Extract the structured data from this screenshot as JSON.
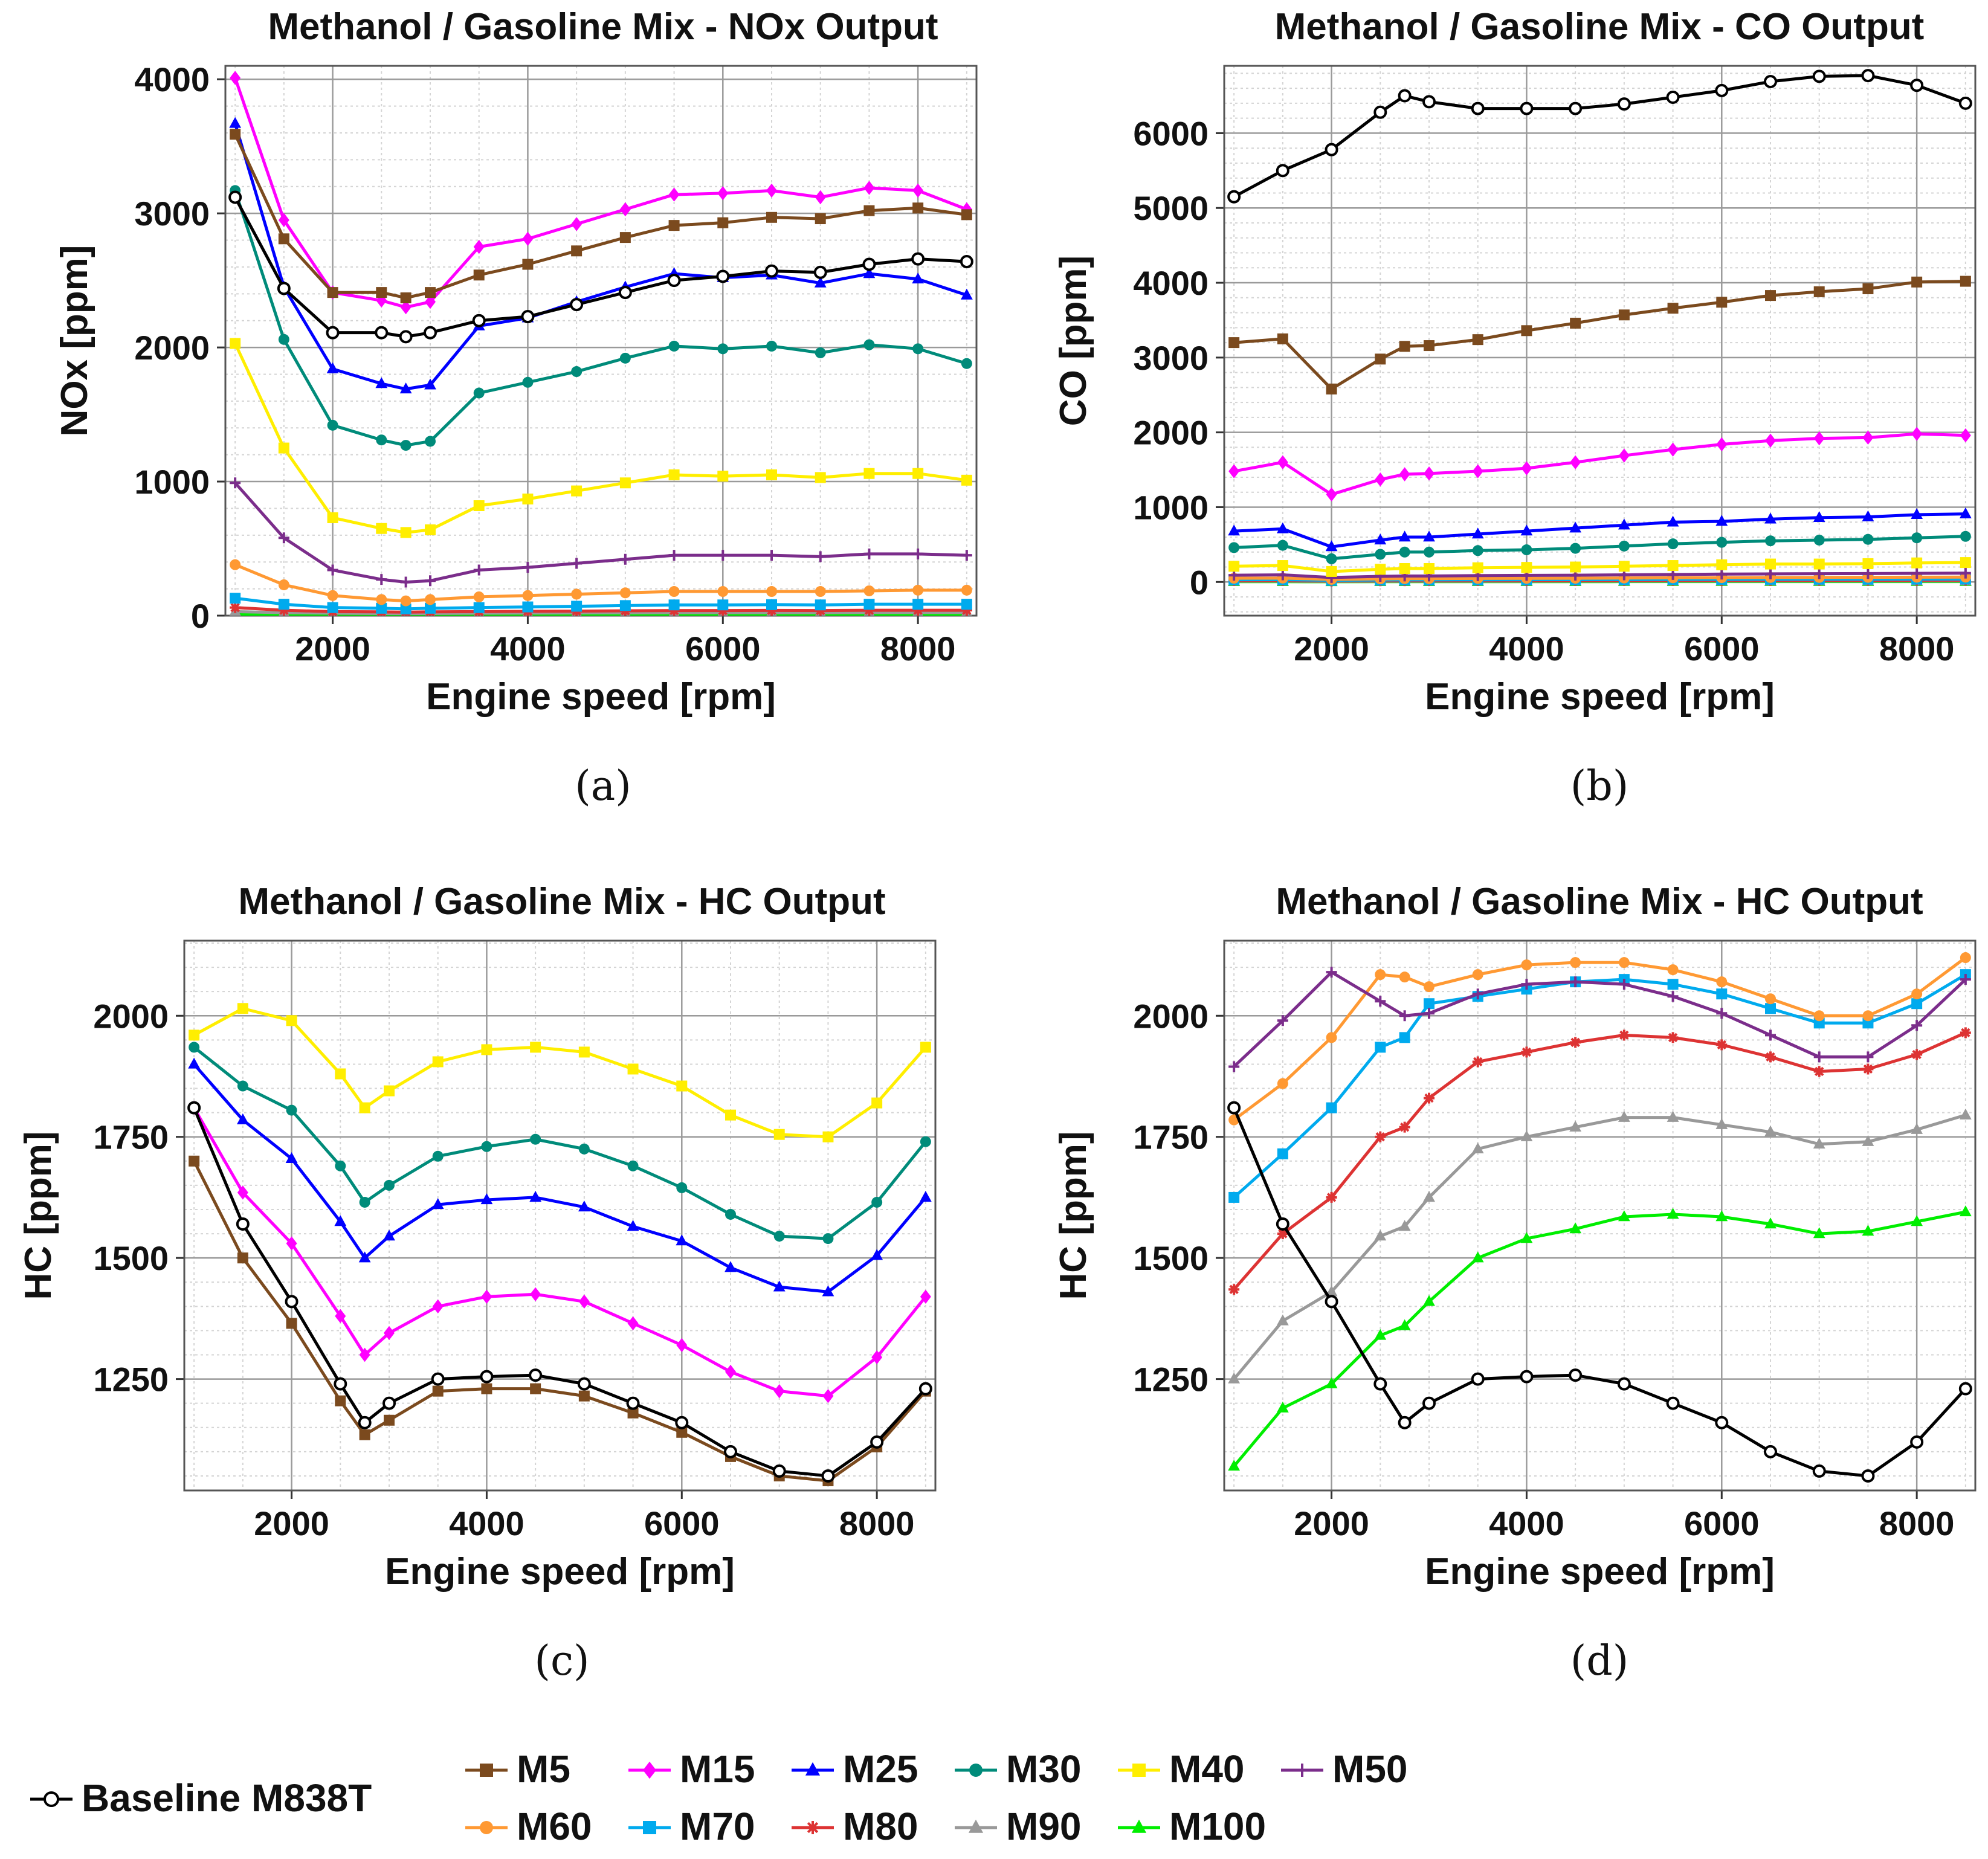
{
  "chart_data": [
    {
      "panel": "(a)",
      "type": "line",
      "title": "Methanol / Gasoline Mix - NOx Output",
      "xlabel": "Engine speed [rpm]",
      "ylabel": "NOx [ppm]",
      "xlim": [
        900,
        8600
      ],
      "ylim": [
        0,
        4100
      ],
      "xticks": [
        2000,
        4000,
        6000,
        8000
      ],
      "yticks": [
        0,
        1000,
        2000,
        3000,
        4000
      ],
      "grid": true,
      "x": [
        1000,
        1500,
        2000,
        2500,
        2750,
        3000,
        3500,
        4000,
        4500,
        5000,
        5500,
        6000,
        6500,
        7000,
        7500,
        8000,
        8500
      ],
      "series": [
        {
          "name": "Baseline M838T",
          "values": [
            3120,
            2440,
            2110,
            2110,
            2080,
            2110,
            2200,
            2230,
            2320,
            2410,
            2500,
            2530,
            2570,
            2560,
            2620,
            2660,
            2640
          ]
        },
        {
          "name": "M5",
          "values": [
            3590,
            2810,
            2410,
            2410,
            2370,
            2410,
            2540,
            2620,
            2720,
            2820,
            2910,
            2930,
            2970,
            2960,
            3020,
            3040,
            2990
          ]
        },
        {
          "name": "M15",
          "values": [
            4010,
            2950,
            2410,
            2350,
            2300,
            2340,
            2750,
            2810,
            2920,
            3030,
            3140,
            3150,
            3170,
            3120,
            3190,
            3170,
            3030
          ]
        },
        {
          "name": "M25",
          "values": [
            3670,
            2450,
            1840,
            1730,
            1690,
            1720,
            2160,
            2220,
            2340,
            2450,
            2550,
            2520,
            2540,
            2480,
            2550,
            2510,
            2390
          ]
        },
        {
          "name": "M30",
          "values": [
            3170,
            2060,
            1420,
            1310,
            1270,
            1300,
            1660,
            1740,
            1820,
            1920,
            2010,
            1990,
            2010,
            1960,
            2020,
            1990,
            1880
          ]
        },
        {
          "name": "M40",
          "values": [
            2030,
            1250,
            730,
            650,
            620,
            640,
            820,
            870,
            930,
            990,
            1050,
            1040,
            1050,
            1030,
            1060,
            1060,
            1010
          ]
        },
        {
          "name": "M50",
          "values": [
            990,
            580,
            340,
            270,
            250,
            260,
            340,
            360,
            390,
            420,
            450,
            450,
            450,
            440,
            460,
            460,
            450
          ]
        },
        {
          "name": "M60",
          "values": [
            380,
            230,
            150,
            120,
            110,
            120,
            140,
            150,
            160,
            170,
            180,
            180,
            180,
            180,
            185,
            190,
            190
          ]
        },
        {
          "name": "M70",
          "values": [
            130,
            85,
            60,
            55,
            50,
            55,
            60,
            65,
            70,
            75,
            80,
            80,
            82,
            80,
            85,
            85,
            85
          ]
        },
        {
          "name": "M80",
          "values": [
            60,
            40,
            30,
            28,
            26,
            28,
            30,
            32,
            34,
            36,
            38,
            38,
            39,
            38,
            40,
            40,
            40
          ]
        },
        {
          "name": "M90",
          "values": [
            30,
            22,
            18,
            16,
            15,
            16,
            18,
            19,
            20,
            21,
            22,
            22,
            22,
            22,
            23,
            23,
            23
          ]
        },
        {
          "name": "M100",
          "values": [
            10,
            8,
            7,
            6,
            6,
            6,
            7,
            7,
            7,
            8,
            8,
            8,
            8,
            8,
            8,
            8,
            8
          ]
        }
      ]
    },
    {
      "panel": "(b)",
      "type": "line",
      "title": "Methanol / Gasoline Mix - CO Output",
      "xlabel": "Engine speed [rpm]",
      "ylabel": "CO [ppm]",
      "xlim": [
        900,
        8600
      ],
      "ylim": [
        -450,
        6900
      ],
      "xticks": [
        2000,
        4000,
        6000,
        8000
      ],
      "yticks": [
        0,
        1000,
        2000,
        3000,
        4000,
        5000,
        6000
      ],
      "grid": true,
      "x": [
        1000,
        1500,
        2000,
        2500,
        2750,
        3000,
        3500,
        4000,
        4500,
        5000,
        5500,
        6000,
        6500,
        7000,
        7500,
        8000,
        8500
      ],
      "series": [
        {
          "name": "Baseline M838T",
          "values": [
            5150,
            5500,
            5780,
            6280,
            6500,
            6420,
            6330,
            6330,
            6330,
            6390,
            6480,
            6570,
            6690,
            6760,
            6770,
            6640,
            6400
          ]
        },
        {
          "name": "M5",
          "values": [
            3200,
            3250,
            2580,
            2980,
            3150,
            3160,
            3240,
            3360,
            3460,
            3570,
            3660,
            3740,
            3830,
            3880,
            3920,
            4010,
            4020
          ]
        },
        {
          "name": "M15",
          "values": [
            1480,
            1600,
            1170,
            1370,
            1440,
            1450,
            1480,
            1520,
            1600,
            1690,
            1770,
            1840,
            1890,
            1920,
            1930,
            1980,
            1960
          ]
        },
        {
          "name": "M25",
          "values": [
            680,
            710,
            470,
            560,
            600,
            600,
            640,
            680,
            720,
            760,
            800,
            810,
            840,
            860,
            870,
            900,
            910
          ]
        },
        {
          "name": "M30",
          "values": [
            460,
            490,
            310,
            370,
            400,
            400,
            420,
            430,
            450,
            480,
            510,
            530,
            550,
            560,
            570,
            590,
            610
          ]
        },
        {
          "name": "M40",
          "values": [
            210,
            220,
            140,
            170,
            180,
            180,
            190,
            195,
            200,
            210,
            220,
            230,
            240,
            240,
            245,
            255,
            260
          ]
        },
        {
          "name": "M50",
          "values": [
            90,
            95,
            60,
            75,
            80,
            80,
            85,
            88,
            90,
            95,
            100,
            105,
            108,
            110,
            112,
            115,
            118
          ]
        },
        {
          "name": "M60",
          "values": [
            50,
            52,
            35,
            42,
            45,
            45,
            48,
            49,
            50,
            53,
            56,
            58,
            60,
            61,
            62,
            64,
            65
          ]
        },
        {
          "name": "M70",
          "values": [
            30,
            31,
            22,
            26,
            28,
            28,
            29,
            30,
            31,
            32,
            34,
            35,
            36,
            37,
            37,
            38,
            39
          ]
        },
        {
          "name": "M80",
          "values": [
            18,
            19,
            13,
            16,
            17,
            17,
            18,
            18,
            19,
            20,
            21,
            21,
            22,
            22,
            23,
            23,
            24
          ]
        },
        {
          "name": "M90",
          "values": [
            10,
            11,
            8,
            9,
            10,
            10,
            10,
            10,
            11,
            11,
            12,
            12,
            12,
            13,
            13,
            13,
            13
          ]
        },
        {
          "name": "M100",
          "values": [
            4,
            4,
            3,
            4,
            4,
            4,
            4,
            4,
            4,
            5,
            5,
            5,
            5,
            5,
            5,
            5,
            5
          ]
        }
      ]
    },
    {
      "panel": "(c)",
      "type": "line",
      "title": "Methanol / Gasoline Mix - HC Output",
      "xlabel": "Engine speed [rpm]",
      "ylabel": "HC [ppm]",
      "xlim": [
        900,
        8600
      ],
      "ylim": [
        1020,
        2155
      ],
      "xticks": [
        2000,
        4000,
        6000,
        8000
      ],
      "yticks": [
        1250,
        1500,
        1750,
        2000
      ],
      "grid": true,
      "x": [
        1000,
        1500,
        2000,
        2500,
        2750,
        3000,
        3500,
        4000,
        4500,
        5000,
        5500,
        6000,
        6500,
        7000,
        7500,
        8000,
        8500
      ],
      "series": [
        {
          "name": "Baseline M838T",
          "values": [
            1810,
            1570,
            1410,
            1240,
            1160,
            1200,
            1250,
            1255,
            1258,
            1240,
            1200,
            1160,
            1100,
            1060,
            1050,
            1120,
            1230
          ]
        },
        {
          "name": "M5",
          "values": [
            1700,
            1500,
            1365,
            1205,
            1135,
            1165,
            1225,
            1230,
            1230,
            1215,
            1180,
            1140,
            1090,
            1050,
            1040,
            1110,
            1225
          ]
        },
        {
          "name": "M15",
          "values": [
            1810,
            1635,
            1530,
            1380,
            1300,
            1345,
            1400,
            1420,
            1425,
            1410,
            1365,
            1320,
            1265,
            1225,
            1215,
            1295,
            1420
          ]
        },
        {
          "name": "M25",
          "values": [
            1900,
            1785,
            1705,
            1575,
            1500,
            1545,
            1610,
            1620,
            1625,
            1605,
            1565,
            1535,
            1480,
            1440,
            1430,
            1505,
            1625
          ]
        },
        {
          "name": "M30",
          "values": [
            1935,
            1855,
            1805,
            1690,
            1615,
            1650,
            1710,
            1730,
            1745,
            1725,
            1690,
            1645,
            1590,
            1545,
            1540,
            1615,
            1740
          ]
        },
        {
          "name": "M40",
          "values": [
            1960,
            2015,
            1990,
            1880,
            1810,
            1845,
            1905,
            1930,
            1935,
            1925,
            1890,
            1855,
            1795,
            1755,
            1750,
            1820,
            1935
          ]
        }
      ]
    },
    {
      "panel": "(d)",
      "type": "line",
      "title": "Methanol / Gasoline Mix - HC Output",
      "xlabel": "Engine speed [rpm]",
      "ylabel": "HC [ppm]",
      "xlim": [
        900,
        8600
      ],
      "ylim": [
        1020,
        2155
      ],
      "xticks": [
        2000,
        4000,
        6000,
        8000
      ],
      "yticks": [
        1250,
        1500,
        1750,
        2000
      ],
      "grid": true,
      "x": [
        1000,
        1500,
        2000,
        2500,
        2750,
        3000,
        3500,
        4000,
        4500,
        5000,
        5500,
        6000,
        6500,
        7000,
        7500,
        8000,
        8500
      ],
      "series": [
        {
          "name": "Baseline M838T",
          "values": [
            1810,
            1570,
            1410,
            1240,
            1160,
            1200,
            1250,
            1255,
            1258,
            1240,
            1200,
            1160,
            1100,
            1060,
            1050,
            1120,
            1230
          ]
        },
        {
          "name": "M50",
          "values": [
            1895,
            1990,
            2090,
            2030,
            2000,
            2005,
            2045,
            2065,
            2070,
            2065,
            2040,
            2005,
            1960,
            1915,
            1915,
            1980,
            2075
          ]
        },
        {
          "name": "M60",
          "values": [
            1785,
            1860,
            1955,
            2085,
            2080,
            2060,
            2085,
            2105,
            2110,
            2110,
            2095,
            2070,
            2035,
            2000,
            2000,
            2045,
            2120
          ]
        },
        {
          "name": "M70",
          "values": [
            1625,
            1715,
            1810,
            1935,
            1955,
            2025,
            2040,
            2055,
            2070,
            2075,
            2065,
            2045,
            2015,
            1985,
            1985,
            2025,
            2085
          ]
        },
        {
          "name": "M80",
          "values": [
            1435,
            1550,
            1625,
            1750,
            1770,
            1830,
            1905,
            1925,
            1945,
            1960,
            1955,
            1940,
            1915,
            1885,
            1890,
            1920,
            1965
          ]
        },
        {
          "name": "M90",
          "values": [
            1250,
            1370,
            1430,
            1545,
            1565,
            1625,
            1725,
            1750,
            1770,
            1790,
            1790,
            1775,
            1760,
            1735,
            1740,
            1765,
            1795
          ]
        },
        {
          "name": "M100",
          "values": [
            1070,
            1190,
            1240,
            1340,
            1360,
            1410,
            1500,
            1540,
            1560,
            1585,
            1590,
            1585,
            1570,
            1550,
            1555,
            1575,
            1595
          ]
        }
      ]
    }
  ],
  "legend": {
    "placement": "bottom",
    "items": [
      {
        "name": "Baseline M838T",
        "color": "#000000",
        "marker": "open-circle"
      },
      {
        "name": "M5",
        "color": "#7B4A1E",
        "marker": "square"
      },
      {
        "name": "M15",
        "color": "#FF00FF",
        "marker": "diamond"
      },
      {
        "name": "M25",
        "color": "#0000FF",
        "marker": "triangle"
      },
      {
        "name": "M30",
        "color": "#008B7A",
        "marker": "circle"
      },
      {
        "name": "M40",
        "color": "#FFEE00",
        "marker": "square"
      },
      {
        "name": "M50",
        "color": "#7B2D8B",
        "marker": "plus"
      },
      {
        "name": "M60",
        "color": "#FF9933",
        "marker": "circle"
      },
      {
        "name": "M70",
        "color": "#00AAEE",
        "marker": "square"
      },
      {
        "name": "M80",
        "color": "#DD3333",
        "marker": "star"
      },
      {
        "name": "M90",
        "color": "#999999",
        "marker": "triangle"
      },
      {
        "name": "M100",
        "color": "#00EE00",
        "marker": "triangle"
      }
    ]
  }
}
